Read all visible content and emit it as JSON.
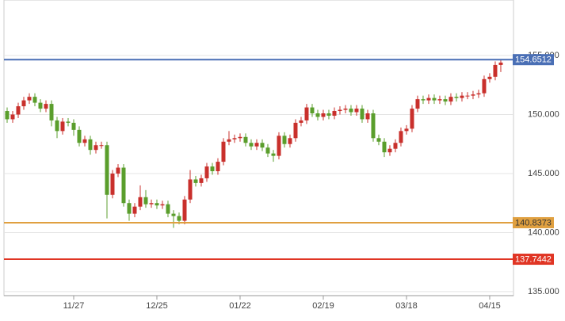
{
  "chart_data": {
    "type": "candlestick",
    "open": [
      150.3,
      149.6,
      150.0,
      150.7,
      151.2,
      151.5,
      151.0,
      150.5,
      150.9,
      149.5,
      148.6,
      149.4,
      149.3,
      148.7,
      147.6,
      147.9,
      147.0,
      147.4,
      147.4,
      143.2,
      145.0,
      145.5,
      142.5,
      141.6,
      142.2,
      143.0,
      142.4,
      142.5,
      142.3,
      142.4,
      141.6,
      141.4,
      141.0,
      142.8,
      144.5,
      144.2,
      144.6,
      145.6,
      145.2,
      146.0,
      147.7,
      147.9,
      148.0,
      148.1,
      147.6,
      147.3,
      147.6,
      147.2,
      146.7,
      146.5,
      148.2,
      147.5,
      148.0,
      149.3,
      149.5,
      150.6,
      150.1,
      149.8,
      150.1,
      149.9,
      150.3,
      150.4,
      150.5,
      150.2,
      150.5,
      149.6,
      150.1,
      148.0,
      147.7,
      146.8,
      147.1,
      147.6,
      148.6,
      148.8,
      150.5,
      151.3,
      151.2,
      151.4,
      151.2,
      151.3,
      151.1,
      151.5,
      151.4,
      151.6,
      151.6,
      151.7,
      151.8,
      153.0,
      153.2,
      154.2
    ],
    "high": [
      150.6,
      150.3,
      151.0,
      151.5,
      151.8,
      151.8,
      151.3,
      151.2,
      151.2,
      149.8,
      149.7,
      149.7,
      149.6,
      149.0,
      148.2,
      148.2,
      147.7,
      147.7,
      147.7,
      145.3,
      145.8,
      145.8,
      142.8,
      142.5,
      144.0,
      143.6,
      142.8,
      142.8,
      142.7,
      142.7,
      141.9,
      141.7,
      143.1,
      145.3,
      144.8,
      144.9,
      145.9,
      145.9,
      146.3,
      148.0,
      148.6,
      148.3,
      148.4,
      148.4,
      147.9,
      147.9,
      147.9,
      147.5,
      147.0,
      148.5,
      148.5,
      148.3,
      149.6,
      149.8,
      150.9,
      150.9,
      150.4,
      150.4,
      150.4,
      150.6,
      150.7,
      150.8,
      150.8,
      150.8,
      150.8,
      150.4,
      150.4,
      148.3,
      148.0,
      147.4,
      147.9,
      148.9,
      149.1,
      150.8,
      151.6,
      151.6,
      151.7,
      151.7,
      151.6,
      151.6,
      151.8,
      151.8,
      151.9,
      151.9,
      152.0,
      152.1,
      153.3,
      153.5,
      154.5,
      154.7
    ],
    "low": [
      149.3,
      149.3,
      149.7,
      150.4,
      150.9,
      150.7,
      150.2,
      150.2,
      149.0,
      148.0,
      148.3,
      149.0,
      148.2,
      147.3,
      147.3,
      146.6,
      146.7,
      147.1,
      141.2,
      142.9,
      144.7,
      142.2,
      141.0,
      141.3,
      141.9,
      142.1,
      142.1,
      142.0,
      142.0,
      141.3,
      140.4,
      140.7,
      140.7,
      142.5,
      143.9,
      143.9,
      144.3,
      144.9,
      144.9,
      145.7,
      147.4,
      147.6,
      147.7,
      147.3,
      147.0,
      147.0,
      146.9,
      146.4,
      146.0,
      146.2,
      147.2,
      147.2,
      147.7,
      149.0,
      149.2,
      149.8,
      149.5,
      149.5,
      149.6,
      149.6,
      150.0,
      150.1,
      149.9,
      149.9,
      149.3,
      149.3,
      147.7,
      147.4,
      146.4,
      146.5,
      146.8,
      147.3,
      148.3,
      148.5,
      150.2,
      150.9,
      150.9,
      150.9,
      150.9,
      150.8,
      150.8,
      151.1,
      151.1,
      151.3,
      151.3,
      151.4,
      151.5,
      152.7,
      152.9,
      153.6
    ],
    "close": [
      149.6,
      150.0,
      150.7,
      151.2,
      151.5,
      151.0,
      150.5,
      150.9,
      149.5,
      148.6,
      149.4,
      149.3,
      148.7,
      147.6,
      147.9,
      147.0,
      147.4,
      147.4,
      143.2,
      145.0,
      145.5,
      142.5,
      141.6,
      142.2,
      143.0,
      142.4,
      142.5,
      142.3,
      142.4,
      141.6,
      141.4,
      141.0,
      142.8,
      144.5,
      144.2,
      144.6,
      145.6,
      145.2,
      146.0,
      147.7,
      147.9,
      148.0,
      148.1,
      147.6,
      147.3,
      147.6,
      147.2,
      146.7,
      146.5,
      148.2,
      147.5,
      148.0,
      149.3,
      149.5,
      150.6,
      150.1,
      149.8,
      150.1,
      149.9,
      150.3,
      150.4,
      150.5,
      150.2,
      150.5,
      149.6,
      150.1,
      148.0,
      147.7,
      146.8,
      147.1,
      147.6,
      148.6,
      148.8,
      150.5,
      151.3,
      151.2,
      151.4,
      151.2,
      151.3,
      151.1,
      151.5,
      151.4,
      151.6,
      151.6,
      151.7,
      151.8,
      153.0,
      153.2,
      154.2,
      154.4
    ],
    "up_color": "#c9302c",
    "down_color": "#5a9e2c",
    "xlim": [
      -0.57,
      91.29
    ],
    "xticks": [
      {
        "value": 12,
        "label": "11/27"
      },
      {
        "value": 27,
        "label": "12/25"
      },
      {
        "value": 42,
        "label": "01/22"
      },
      {
        "value": 57,
        "label": "02/19"
      },
      {
        "value": 72,
        "label": "03/18"
      },
      {
        "value": 87,
        "label": "04/15"
      }
    ],
    "ylim": [
      134.66,
      159.7
    ],
    "yticks": [
      {
        "value": 135,
        "label": "135.000"
      },
      {
        "value": 140,
        "label": "140.000"
      },
      {
        "value": 145,
        "label": "145.000"
      },
      {
        "value": 150,
        "label": "150.000"
      },
      {
        "value": 155,
        "label": "155.000"
      }
    ],
    "grid": true,
    "levels": [
      {
        "value": 154.6512,
        "color": "#4a6fb5",
        "text_color": "#ffffff"
      },
      {
        "value": 140.8373,
        "color": "#e0a040",
        "text_color": "#333333"
      },
      {
        "value": 137.7442,
        "color": "#e03524",
        "text_color": "#ffffff"
      }
    ]
  }
}
